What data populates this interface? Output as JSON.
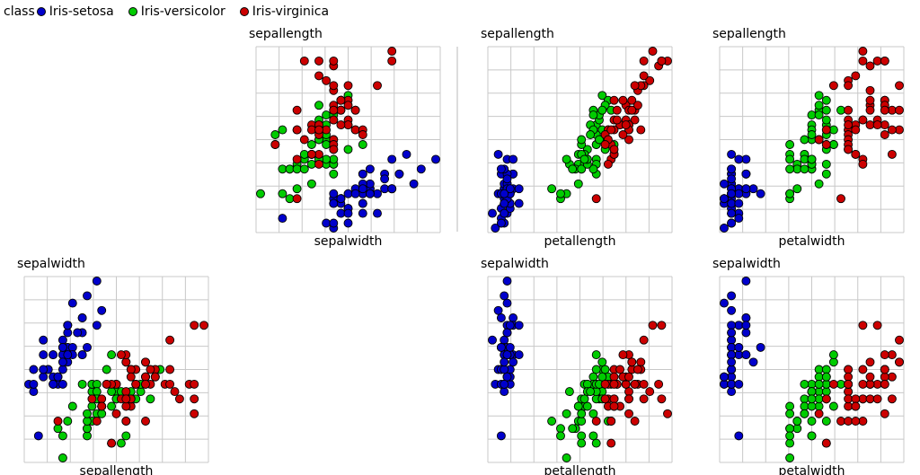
{
  "chart_data": {
    "type": "scatter",
    "legend": {
      "title": "class",
      "placement": "top-left",
      "entries": [
        {
          "name": "Iris-setosa",
          "color": "#0000cc"
        },
        {
          "name": "Iris-versicolor",
          "color": "#00cc00"
        },
        {
          "name": "Iris-virginica",
          "color": "#cc0000"
        }
      ]
    },
    "grid": true,
    "attributes": {
      "sepallength": [
        4.3,
        7.9
      ],
      "sepalwidth": [
        2.0,
        4.4
      ],
      "petallength": [
        1.0,
        6.9
      ],
      "petalwidth": [
        0.1,
        2.5
      ]
    },
    "panels": [
      {
        "id": "p1",
        "ylabel": "sepallength",
        "xlabel": "sepalwidth",
        "x": "sepalwidth",
        "y": "sepallength"
      },
      {
        "id": "p2",
        "ylabel": "sepallength",
        "xlabel": "petallength",
        "x": "petallength",
        "y": "sepallength"
      },
      {
        "id": "p3",
        "ylabel": "sepallength",
        "xlabel": "petalwidth",
        "x": "petalwidth",
        "y": "sepallength"
      },
      {
        "id": "p4",
        "ylabel": "sepalwidth",
        "xlabel": "sepallength",
        "x": "sepallength",
        "y": "sepalwidth"
      },
      {
        "id": "p5",
        "ylabel": "sepalwidth",
        "xlabel": "petallength",
        "x": "petallength",
        "y": "sepalwidth"
      },
      {
        "id": "p6",
        "ylabel": "sepalwidth",
        "xlabel": "petalwidth",
        "x": "petalwidth",
        "y": "sepalwidth"
      }
    ],
    "fields": [
      "sepallength",
      "sepalwidth",
      "petallength",
      "petalwidth"
    ],
    "series": [
      {
        "name": "Iris-setosa",
        "color": "#0000cc",
        "points": [
          [
            5.1,
            3.5,
            1.4,
            0.2
          ],
          [
            4.9,
            3.0,
            1.4,
            0.2
          ],
          [
            4.7,
            3.2,
            1.3,
            0.2
          ],
          [
            4.6,
            3.1,
            1.5,
            0.2
          ],
          [
            5.0,
            3.6,
            1.4,
            0.2
          ],
          [
            5.4,
            3.9,
            1.7,
            0.4
          ],
          [
            4.6,
            3.4,
            1.4,
            0.3
          ],
          [
            5.0,
            3.4,
            1.5,
            0.2
          ],
          [
            4.4,
            2.9,
            1.4,
            0.2
          ],
          [
            4.9,
            3.1,
            1.5,
            0.1
          ],
          [
            5.4,
            3.7,
            1.5,
            0.2
          ],
          [
            4.8,
            3.4,
            1.6,
            0.2
          ],
          [
            4.8,
            3.0,
            1.4,
            0.1
          ],
          [
            4.3,
            3.0,
            1.1,
            0.1
          ],
          [
            5.8,
            4.0,
            1.2,
            0.2
          ],
          [
            5.7,
            4.4,
            1.5,
            0.4
          ],
          [
            5.4,
            3.9,
            1.3,
            0.4
          ],
          [
            5.1,
            3.5,
            1.4,
            0.3
          ],
          [
            5.7,
            3.8,
            1.7,
            0.3
          ],
          [
            5.1,
            3.8,
            1.5,
            0.3
          ],
          [
            5.4,
            3.4,
            1.7,
            0.2
          ],
          [
            5.1,
            3.7,
            1.5,
            0.4
          ],
          [
            4.6,
            3.6,
            1.0,
            0.2
          ],
          [
            5.1,
            3.3,
            1.7,
            0.5
          ],
          [
            4.8,
            3.4,
            1.9,
            0.2
          ],
          [
            5.0,
            3.0,
            1.6,
            0.2
          ],
          [
            5.0,
            3.4,
            1.6,
            0.4
          ],
          [
            5.2,
            3.5,
            1.5,
            0.2
          ],
          [
            5.2,
            3.4,
            1.4,
            0.2
          ],
          [
            4.7,
            3.2,
            1.6,
            0.2
          ],
          [
            4.8,
            3.1,
            1.6,
            0.2
          ],
          [
            5.4,
            3.4,
            1.5,
            0.4
          ],
          [
            5.2,
            4.1,
            1.5,
            0.1
          ],
          [
            5.5,
            4.2,
            1.4,
            0.2
          ],
          [
            4.9,
            3.1,
            1.5,
            0.1
          ],
          [
            5.0,
            3.2,
            1.2,
            0.2
          ],
          [
            5.5,
            3.5,
            1.3,
            0.2
          ],
          [
            4.9,
            3.1,
            1.5,
            0.1
          ],
          [
            4.4,
            3.0,
            1.3,
            0.2
          ],
          [
            5.1,
            3.4,
            1.5,
            0.2
          ],
          [
            5.0,
            3.5,
            1.3,
            0.3
          ],
          [
            4.5,
            2.3,
            1.3,
            0.3
          ],
          [
            4.4,
            3.2,
            1.3,
            0.2
          ],
          [
            5.0,
            3.5,
            1.6,
            0.6
          ],
          [
            5.1,
            3.8,
            1.9,
            0.4
          ],
          [
            4.8,
            3.0,
            1.4,
            0.3
          ],
          [
            5.1,
            3.8,
            1.6,
            0.2
          ],
          [
            4.6,
            3.2,
            1.4,
            0.2
          ],
          [
            5.3,
            3.7,
            1.5,
            0.2
          ],
          [
            5.0,
            3.3,
            1.4,
            0.2
          ]
        ]
      },
      {
        "name": "Iris-versicolor",
        "color": "#00cc00",
        "points": [
          [
            7.0,
            3.2,
            4.7,
            1.4
          ],
          [
            6.4,
            3.2,
            4.5,
            1.5
          ],
          [
            6.9,
            3.1,
            4.9,
            1.5
          ],
          [
            5.5,
            2.3,
            4.0,
            1.3
          ],
          [
            6.5,
            2.8,
            4.6,
            1.5
          ],
          [
            5.7,
            2.8,
            4.5,
            1.3
          ],
          [
            6.3,
            3.3,
            4.7,
            1.6
          ],
          [
            4.9,
            2.4,
            3.3,
            1.0
          ],
          [
            6.6,
            2.9,
            4.6,
            1.3
          ],
          [
            5.2,
            2.7,
            3.9,
            1.4
          ],
          [
            5.0,
            2.0,
            3.5,
            1.0
          ],
          [
            5.9,
            3.0,
            4.2,
            1.5
          ],
          [
            6.0,
            2.2,
            4.0,
            1.0
          ],
          [
            6.1,
            2.9,
            4.7,
            1.4
          ],
          [
            5.6,
            2.9,
            3.6,
            1.3
          ],
          [
            6.7,
            3.1,
            4.4,
            1.4
          ],
          [
            5.6,
            3.0,
            4.5,
            1.5
          ],
          [
            5.8,
            2.7,
            4.1,
            1.0
          ],
          [
            6.2,
            2.2,
            4.5,
            1.5
          ],
          [
            5.6,
            2.5,
            3.9,
            1.1
          ],
          [
            5.9,
            3.2,
            4.8,
            1.8
          ],
          [
            6.1,
            2.8,
            4.0,
            1.3
          ],
          [
            6.3,
            2.5,
            4.9,
            1.5
          ],
          [
            6.1,
            2.8,
            4.7,
            1.2
          ],
          [
            6.4,
            2.9,
            4.3,
            1.3
          ],
          [
            6.6,
            3.0,
            4.4,
            1.4
          ],
          [
            6.8,
            2.8,
            4.8,
            1.4
          ],
          [
            6.7,
            3.0,
            5.0,
            1.7
          ],
          [
            6.0,
            2.9,
            4.5,
            1.5
          ],
          [
            5.7,
            2.6,
            3.5,
            1.0
          ],
          [
            5.5,
            2.4,
            3.8,
            1.1
          ],
          [
            5.5,
            2.4,
            3.7,
            1.0
          ],
          [
            5.8,
            2.7,
            3.9,
            1.2
          ],
          [
            6.0,
            2.7,
            5.1,
            1.6
          ],
          [
            5.4,
            3.0,
            4.5,
            1.5
          ],
          [
            6.0,
            3.4,
            4.5,
            1.6
          ],
          [
            6.7,
            3.1,
            4.7,
            1.5
          ],
          [
            6.3,
            2.3,
            4.4,
            1.3
          ],
          [
            5.6,
            3.0,
            4.1,
            1.3
          ],
          [
            5.5,
            2.5,
            4.0,
            1.3
          ],
          [
            5.5,
            2.6,
            4.4,
            1.2
          ],
          [
            6.1,
            3.0,
            4.6,
            1.4
          ],
          [
            5.8,
            2.6,
            4.0,
            1.2
          ],
          [
            5.0,
            2.3,
            3.3,
            1.0
          ],
          [
            5.6,
            2.7,
            4.2,
            1.3
          ],
          [
            5.7,
            3.0,
            4.2,
            1.2
          ],
          [
            5.7,
            2.9,
            4.2,
            1.3
          ],
          [
            6.2,
            2.9,
            4.3,
            1.3
          ],
          [
            5.1,
            2.5,
            3.0,
            1.1
          ],
          [
            5.7,
            2.8,
            4.1,
            1.3
          ]
        ]
      },
      {
        "name": "Iris-virginica",
        "color": "#cc0000",
        "points": [
          [
            6.3,
            3.3,
            6.0,
            2.5
          ],
          [
            5.8,
            2.7,
            5.1,
            1.9
          ],
          [
            7.1,
            3.0,
            5.9,
            2.1
          ],
          [
            6.3,
            2.9,
            5.6,
            1.8
          ],
          [
            6.5,
            3.0,
            5.8,
            2.2
          ],
          [
            7.6,
            3.0,
            6.6,
            2.1
          ],
          [
            4.9,
            2.5,
            4.5,
            1.7
          ],
          [
            7.3,
            2.9,
            6.3,
            1.8
          ],
          [
            6.7,
            2.5,
            5.8,
            1.8
          ],
          [
            7.2,
            3.6,
            6.1,
            2.5
          ],
          [
            6.5,
            3.2,
            5.1,
            2.0
          ],
          [
            6.4,
            2.7,
            5.3,
            1.9
          ],
          [
            6.8,
            3.0,
            5.5,
            2.1
          ],
          [
            5.7,
            2.5,
            5.0,
            2.0
          ],
          [
            5.8,
            2.8,
            5.1,
            2.4
          ],
          [
            6.4,
            3.2,
            5.3,
            2.3
          ],
          [
            6.5,
            3.0,
            5.5,
            1.8
          ],
          [
            7.7,
            3.8,
            6.7,
            2.2
          ],
          [
            7.7,
            2.6,
            6.9,
            2.3
          ],
          [
            6.0,
            2.2,
            5.0,
            1.5
          ],
          [
            6.9,
            3.2,
            5.7,
            2.3
          ],
          [
            5.6,
            2.8,
            4.9,
            2.0
          ],
          [
            7.7,
            2.8,
            6.7,
            2.0
          ],
          [
            6.3,
            2.7,
            4.9,
            1.8
          ],
          [
            6.7,
            3.3,
            5.7,
            2.1
          ],
          [
            7.2,
            3.2,
            6.0,
            1.8
          ],
          [
            6.2,
            2.8,
            4.8,
            1.8
          ],
          [
            6.1,
            3.0,
            4.9,
            1.8
          ],
          [
            6.4,
            2.8,
            5.6,
            2.1
          ],
          [
            7.2,
            3.0,
            5.8,
            1.6
          ],
          [
            7.4,
            2.8,
            6.1,
            1.9
          ],
          [
            7.9,
            3.8,
            6.4,
            2.0
          ],
          [
            6.4,
            2.8,
            5.6,
            2.2
          ],
          [
            6.3,
            2.8,
            5.1,
            1.5
          ],
          [
            6.1,
            2.6,
            5.6,
            1.4
          ],
          [
            7.7,
            3.0,
            6.1,
            2.3
          ],
          [
            6.3,
            3.4,
            5.6,
            2.4
          ],
          [
            6.4,
            3.1,
            5.5,
            1.8
          ],
          [
            6.0,
            3.0,
            4.8,
            1.8
          ],
          [
            6.9,
            3.1,
            5.4,
            2.1
          ],
          [
            6.7,
            3.1,
            5.6,
            2.4
          ],
          [
            6.9,
            3.1,
            5.1,
            2.3
          ],
          [
            5.8,
            2.7,
            5.1,
            1.9
          ],
          [
            6.8,
            3.2,
            5.9,
            2.3
          ],
          [
            6.7,
            3.3,
            5.7,
            2.5
          ],
          [
            6.7,
            3.0,
            5.2,
            2.3
          ],
          [
            6.3,
            2.5,
            5.0,
            1.9
          ],
          [
            6.5,
            3.0,
            5.2,
            2.0
          ],
          [
            6.2,
            3.4,
            5.4,
            2.3
          ],
          [
            5.9,
            3.0,
            5.1,
            1.8
          ]
        ]
      }
    ]
  }
}
